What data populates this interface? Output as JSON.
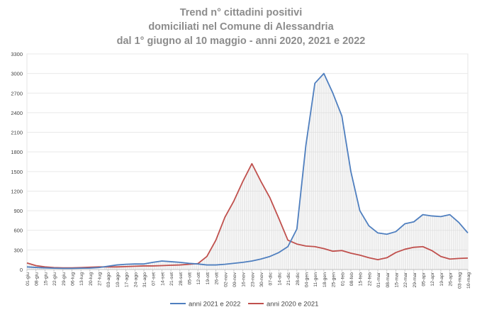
{
  "chart_data": {
    "type": "line",
    "title_lines": [
      "Trend n° cittadini positivi",
      "domiciliati nel Comune di Alessandria",
      "dal 1° giugno al 10 maggio - anni 2020, 2021 e 2022"
    ],
    "y_ticks": [
      "0",
      "300",
      "600",
      "900",
      "1200",
      "1500",
      "1800",
      "2100",
      "2400",
      "2700",
      "3000",
      "3300"
    ],
    "ylim": [
      0,
      3300
    ],
    "x_ticks": [
      "01-giu",
      "08-giu",
      "15-giu",
      "22-giu",
      "29-giu",
      "06-lug",
      "13-lug",
      "20-lug",
      "27-lug",
      "03-ago",
      "10-ago",
      "17-ago",
      "24-ago",
      "31-ago",
      "07-set",
      "14-set",
      "21-set",
      "28-set",
      "05-ott",
      "12-ott",
      "19-ott",
      "26-ott",
      "02-nov",
      "09-nov",
      "16-nov",
      "23-nov",
      "30-nov",
      "07-dic",
      "14-dic",
      "21-dic",
      "28-dic",
      "04-gen",
      "11-gen",
      "18-gen",
      "25-gen",
      "01-feb",
      "08-feb",
      "15-feb",
      "22-feb",
      "01-mar",
      "08-mar",
      "15-mar",
      "22-mar",
      "29-mar",
      "05-apr",
      "12-apr",
      "19-apr",
      "26-apr",
      "03-mag",
      "10-mag"
    ],
    "grid": "horizontal",
    "legend_position": "bottom",
    "series": [
      {
        "name": "anni 2021 e 2022",
        "color": "#4f7fbf",
        "values": [
          40,
          32,
          25,
          20,
          18,
          18,
          20,
          22,
          30,
          50,
          70,
          80,
          85,
          85,
          110,
          130,
          120,
          110,
          95,
          85,
          70,
          70,
          80,
          95,
          110,
          130,
          160,
          200,
          260,
          350,
          620,
          1900,
          2850,
          3000,
          2700,
          2350,
          1500,
          900,
          670,
          560,
          540,
          580,
          700,
          730,
          840,
          820,
          810,
          840,
          720,
          560
        ]
      },
      {
        "name": "anni 2020 e 2021",
        "color": "#c0504d",
        "values": [
          100,
          60,
          40,
          30,
          25,
          25,
          30,
          35,
          40,
          40,
          40,
          45,
          50,
          55,
          55,
          60,
          65,
          70,
          80,
          90,
          200,
          450,
          800,
          1050,
          1350,
          1620,
          1350,
          1100,
          780,
          450,
          390,
          360,
          350,
          320,
          280,
          290,
          250,
          220,
          180,
          150,
          180,
          260,
          310,
          340,
          350,
          290,
          200,
          160,
          170,
          175
        ]
      }
    ]
  }
}
